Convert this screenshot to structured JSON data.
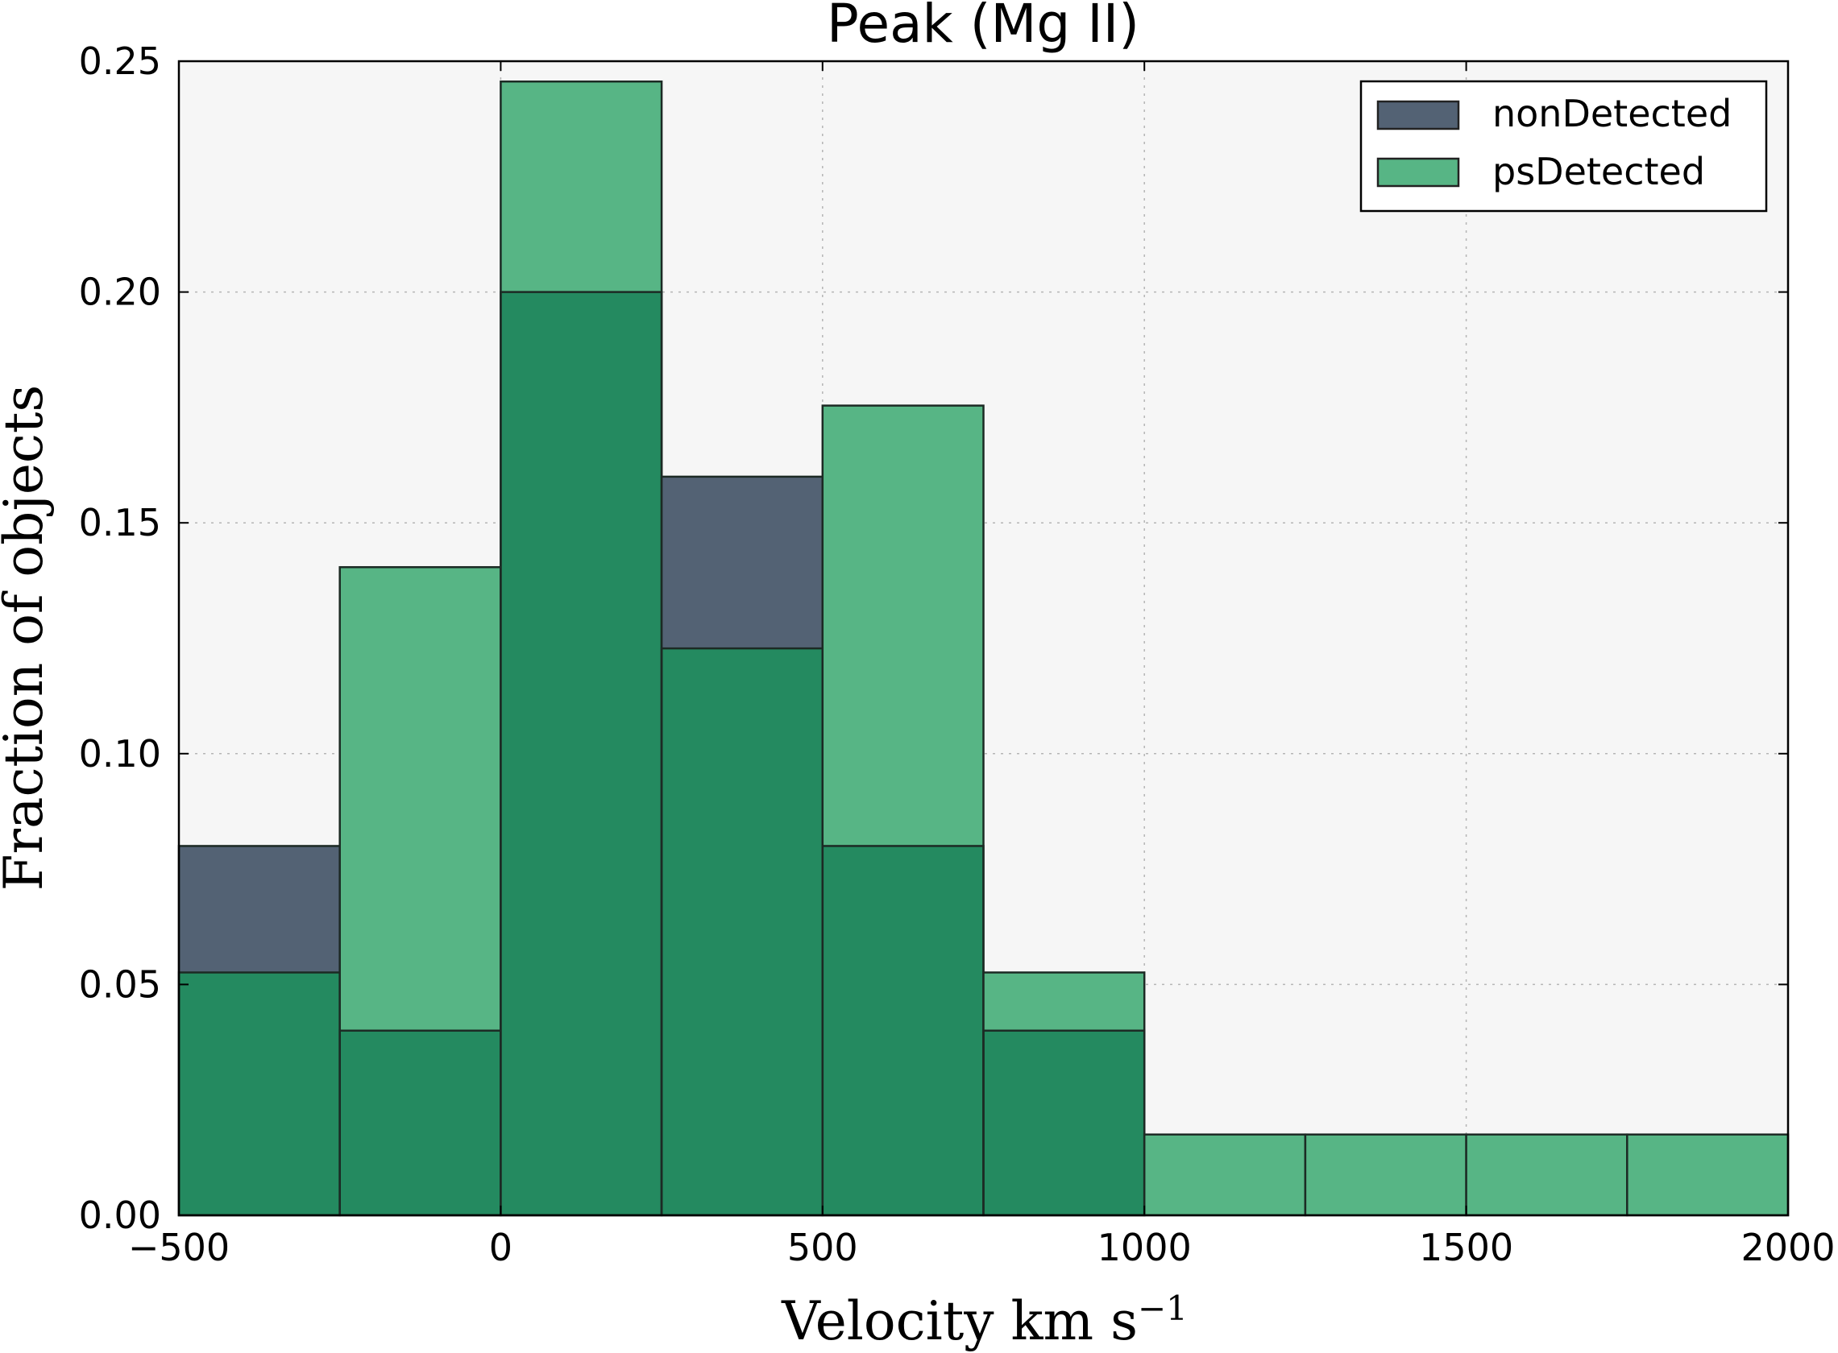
{
  "chart_data": {
    "type": "bar",
    "title": "Peak (Mg II)",
    "xlabel": "Velocity km s",
    "xlabel_exponent": "−1",
    "ylabel": "Fraction of objects",
    "xlim": [
      -500,
      2000
    ],
    "ylim": [
      0,
      0.25
    ],
    "bin_edges": [
      -500,
      -250,
      0,
      250,
      500,
      750,
      1000,
      1250,
      1500,
      1750,
      2000
    ],
    "xticks": [
      -500,
      0,
      500,
      1000,
      1500,
      2000
    ],
    "xtick_labels": [
      "−500",
      "0",
      "500",
      "1000",
      "1500",
      "2000"
    ],
    "yticks": [
      0,
      0.05,
      0.1,
      0.15,
      0.2,
      0.25
    ],
    "ytick_labels": [
      "0.00",
      "0.05",
      "0.10",
      "0.15",
      "0.20",
      "0.25"
    ],
    "grid": true,
    "legend_position": "top-right",
    "series": [
      {
        "name": "nonDetected",
        "color": "#536274",
        "values": [
          0.08,
          0.04,
          0.2,
          0.16,
          0.08,
          0.04,
          0,
          0,
          0,
          0
        ]
      },
      {
        "name": "psDetected",
        "color": "#57b585",
        "values": [
          0.0526,
          0.1404,
          0.2456,
          0.1228,
          0.1754,
          0.0526,
          0.0175,
          0.0175,
          0.0175,
          0.0175
        ]
      }
    ],
    "overlap_color": "#248a60"
  }
}
